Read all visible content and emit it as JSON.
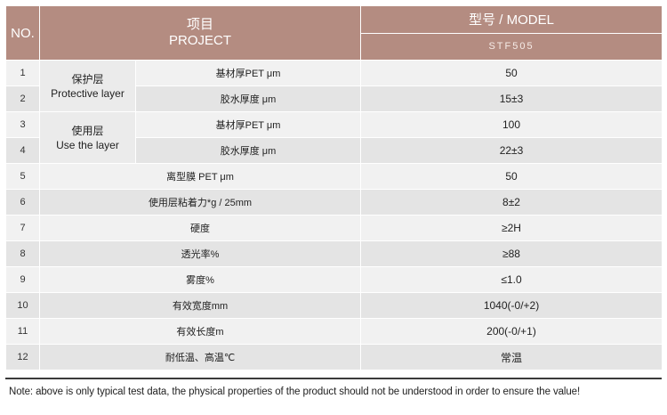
{
  "header": {
    "no": "NO.",
    "project_cn": "项目",
    "project_en": "PROJECT",
    "model_label": "型号 / MODEL",
    "model_name": "STF505"
  },
  "groups": {
    "protective_cn": "保护层",
    "protective_en": "Protective layer",
    "use_cn": "使用层",
    "use_en": "Use the layer"
  },
  "rows": [
    {
      "no": "1",
      "item": "基材厚PET μm",
      "value": "50"
    },
    {
      "no": "2",
      "item": "胶水厚度 μm",
      "value": "15±3"
    },
    {
      "no": "3",
      "item": "基材厚PET μm",
      "value": "100"
    },
    {
      "no": "4",
      "item": "胶水厚度 μm",
      "value": "22±3"
    },
    {
      "no": "5",
      "item": "离型膜 PET μm",
      "value": "50"
    },
    {
      "no": "6",
      "item": "使用层粘着力*g / 25mm",
      "value": "8±2"
    },
    {
      "no": "7",
      "item": "硬度",
      "value": "≥2H"
    },
    {
      "no": "8",
      "item": "透光率%",
      "value": "≥88"
    },
    {
      "no": "9",
      "item": "雾度%",
      "value": "≤1.0"
    },
    {
      "no": "10",
      "item": "有效宽度mm",
      "value": "1040(-0/+2)"
    },
    {
      "no": "11",
      "item": "有效长度m",
      "value": "200(-0/+1)"
    },
    {
      "no": "12",
      "item": "耐低温、高温℃",
      "value": "常温"
    }
  ],
  "note": "Note: above is only typical test data, the physical properties of the product should not be understood in order to ensure the value!",
  "colors": {
    "header_bg": "#b48c81",
    "row_light": "#f1f1f1",
    "row_dark": "#e4e4e4"
  }
}
